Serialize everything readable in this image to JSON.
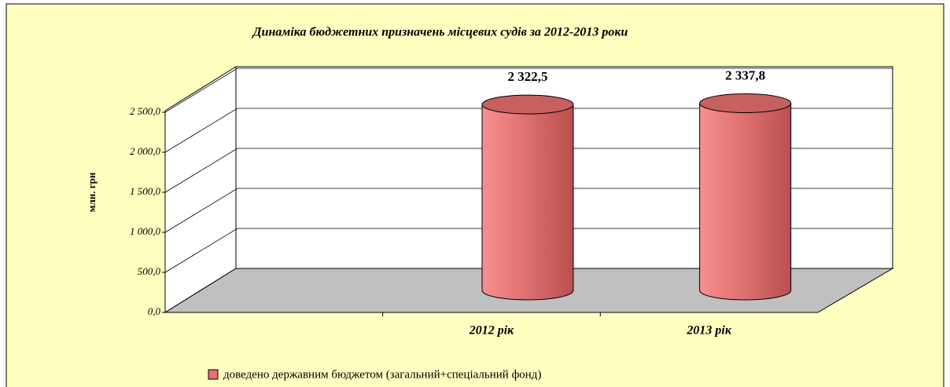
{
  "chart_data": {
    "type": "bar",
    "title": "Динаміка бюджетних призначень місцевих судів за 2012-2013 роки",
    "y_label": "млн. грн",
    "categories": [
      null,
      "2012 рік",
      "2013 рік"
    ],
    "series": [
      {
        "name": "доведено державним бюджетом (загальний+спеціальний фонд)",
        "color": "#e87070",
        "values": [
          null,
          2322.5,
          2337.8
        ],
        "value_labels": [
          null,
          "2 322,5",
          "2 337,8"
        ]
      }
    ],
    "ylim": [
      0,
      3000
    ],
    "yticks": [
      {
        "value": 0,
        "label": "0,0"
      },
      {
        "value": 500,
        "label": "500,0"
      },
      {
        "value": 1000,
        "label": "1 000,0"
      },
      {
        "value": 1500,
        "label": "1 500,0"
      },
      {
        "value": 2000,
        "label": "2 000,0"
      },
      {
        "value": 2500,
        "label": "2 500,0"
      }
    ],
    "grid": true
  }
}
